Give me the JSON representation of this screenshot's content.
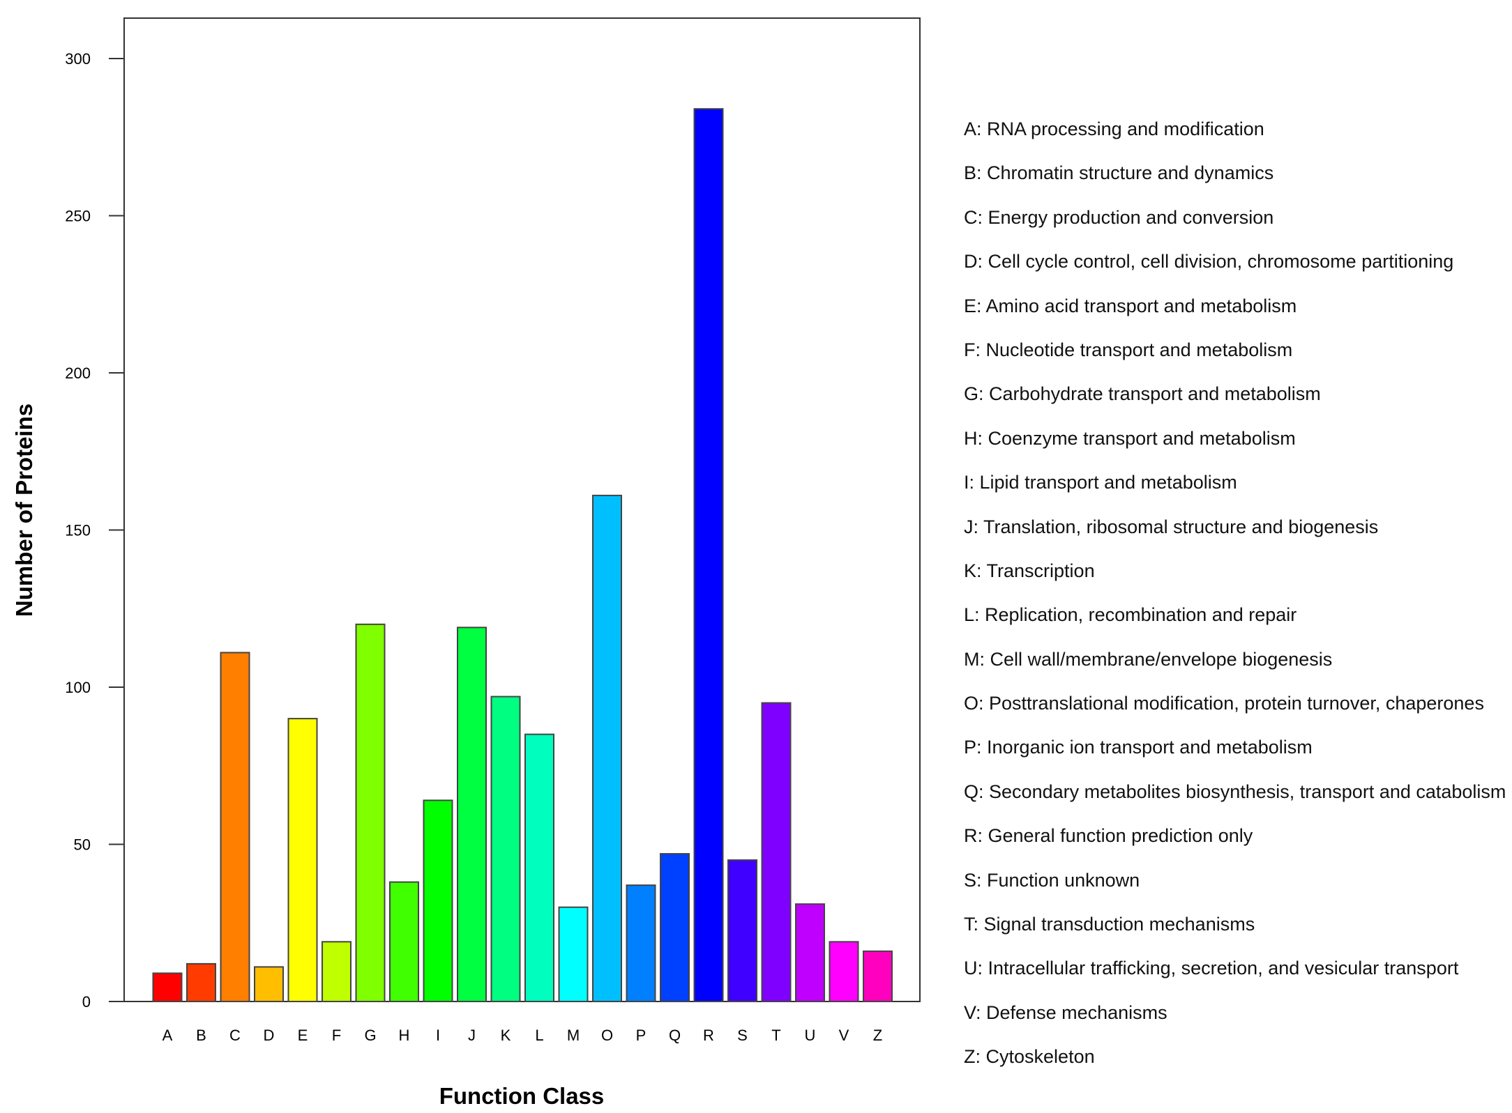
{
  "chart_data": {
    "type": "bar",
    "title": "",
    "xlabel": "Function Class",
    "ylabel": "Number of Proteins",
    "ylim": [
      0,
      300
    ],
    "yticks": [
      0,
      50,
      100,
      150,
      200,
      250,
      300
    ],
    "categories": [
      "A",
      "B",
      "C",
      "D",
      "E",
      "F",
      "G",
      "H",
      "I",
      "J",
      "K",
      "L",
      "M",
      "O",
      "P",
      "Q",
      "R",
      "S",
      "T",
      "U",
      "V",
      "Z"
    ],
    "values": [
      9,
      12,
      111,
      11,
      90,
      19,
      120,
      38,
      64,
      119,
      97,
      85,
      30,
      161,
      37,
      47,
      284,
      45,
      95,
      31,
      19,
      16
    ],
    "colors": [
      "#ff0000",
      "#ff3b00",
      "#ff7f00",
      "#ffbe00",
      "#ffff00",
      "#bfff00",
      "#80ff00",
      "#40ff00",
      "#00ff00",
      "#00ff40",
      "#00ff80",
      "#00ffbf",
      "#00ffff",
      "#00bfff",
      "#0080ff",
      "#0040ff",
      "#0000ff",
      "#4000ff",
      "#8000ff",
      "#bf00ff",
      "#ff00ff",
      "#ff00bf"
    ],
    "legend": [
      {
        "code": "A",
        "label": "RNA processing and modification"
      },
      {
        "code": "B",
        "label": "Chromatin structure and dynamics"
      },
      {
        "code": "C",
        "label": "Energy production and conversion"
      },
      {
        "code": "D",
        "label": "Cell cycle control, cell division, chromosome partitioning"
      },
      {
        "code": "E",
        "label": "Amino acid transport and metabolism"
      },
      {
        "code": "F",
        "label": "Nucleotide transport and metabolism"
      },
      {
        "code": "G",
        "label": "Carbohydrate transport and metabolism"
      },
      {
        "code": "H",
        "label": "Coenzyme transport and metabolism"
      },
      {
        "code": "I",
        "label": "Lipid transport and metabolism"
      },
      {
        "code": "J",
        "label": "Translation, ribosomal structure and biogenesis"
      },
      {
        "code": "K",
        "label": "Transcription"
      },
      {
        "code": "L",
        "label": "Replication, recombination and repair"
      },
      {
        "code": "M",
        "label": "Cell wall/membrane/envelope biogenesis"
      },
      {
        "code": "O",
        "label": "Posttranslational modification, protein turnover, chaperones"
      },
      {
        "code": "P",
        "label": "Inorganic ion transport and metabolism"
      },
      {
        "code": "Q",
        "label": "Secondary metabolites biosynthesis, transport and catabolism"
      },
      {
        "code": "R",
        "label": "General function prediction only"
      },
      {
        "code": "S",
        "label": "Function unknown"
      },
      {
        "code": "T",
        "label": "Signal transduction mechanisms"
      },
      {
        "code": "U",
        "label": "Intracellular trafficking, secretion, and vesicular transport"
      },
      {
        "code": "V",
        "label": "Defense mechanisms"
      },
      {
        "code": "Z",
        "label": "Cytoskeleton"
      }
    ]
  }
}
